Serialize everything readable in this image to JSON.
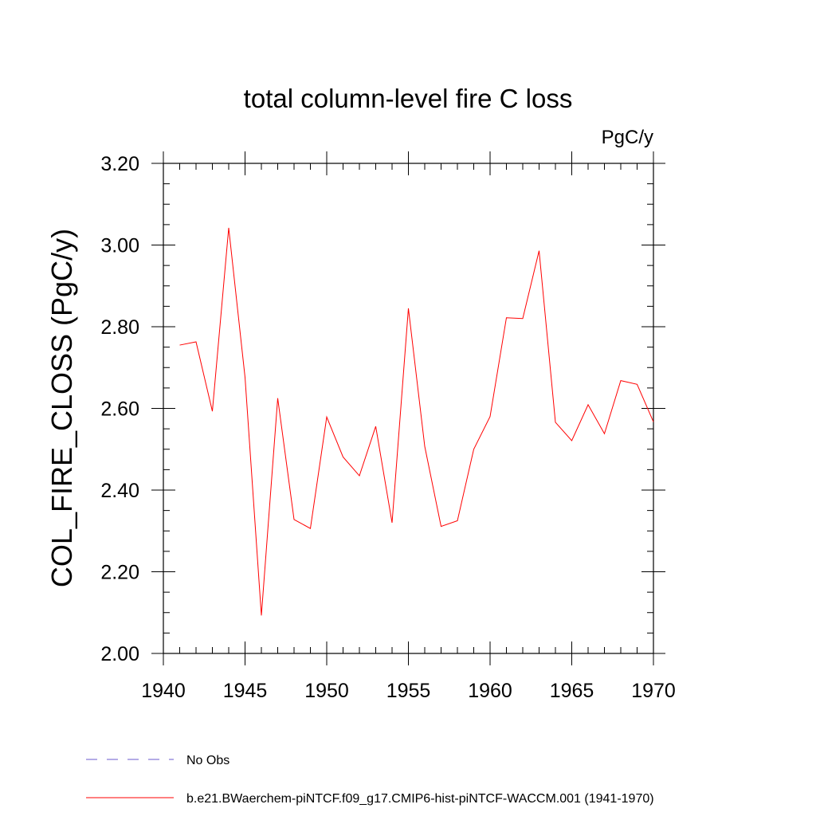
{
  "chart_data": {
    "type": "line",
    "title": "total column-level fire C loss",
    "units_label": "PgC/y",
    "ylabel": "COL_FIRE_CLOSS  (PgC/y)",
    "xlabel": "",
    "xlim": [
      1940,
      1970
    ],
    "ylim": [
      2.0,
      3.2
    ],
    "x_ticks": [
      "1940",
      "1945",
      "1950",
      "1955",
      "1960",
      "1965",
      "1970"
    ],
    "y_ticks": [
      "2.00",
      "2.20",
      "2.40",
      "2.60",
      "2.80",
      "3.00",
      "3.20"
    ],
    "x": [
      1941,
      1942,
      1943,
      1944,
      1945,
      1946,
      1947,
      1948,
      1949,
      1950,
      1951,
      1952,
      1953,
      1954,
      1955,
      1956,
      1957,
      1958,
      1959,
      1960,
      1961,
      1962,
      1963,
      1964,
      1965,
      1966,
      1967,
      1968,
      1969,
      1970
    ],
    "series": [
      {
        "name": "b.e21.BWaerchem-piNTCF.f09_g17.CMIP6-hist-piNTCF-WACCM.001 (1941-1970)",
        "color": "#ff0000",
        "values": [
          2.755,
          2.763,
          2.593,
          3.042,
          2.676,
          2.093,
          2.625,
          2.328,
          2.306,
          2.579,
          2.481,
          2.435,
          2.556,
          2.32,
          2.845,
          2.507,
          2.311,
          2.325,
          2.5,
          2.58,
          2.822,
          2.82,
          2.986,
          2.566,
          2.521,
          2.609,
          2.538,
          2.668,
          2.659,
          2.567
        ]
      }
    ],
    "legend": [
      {
        "label": "No Obs",
        "color": "#6a5acd",
        "style": "dashed"
      },
      {
        "label": "b.e21.BWaerchem-piNTCF.f09_g17.CMIP6-hist-piNTCF-WACCM.001 (1941-1970)",
        "color": "#ff0000",
        "style": "solid"
      }
    ],
    "legend_position": "bottom-left",
    "grid": false
  }
}
